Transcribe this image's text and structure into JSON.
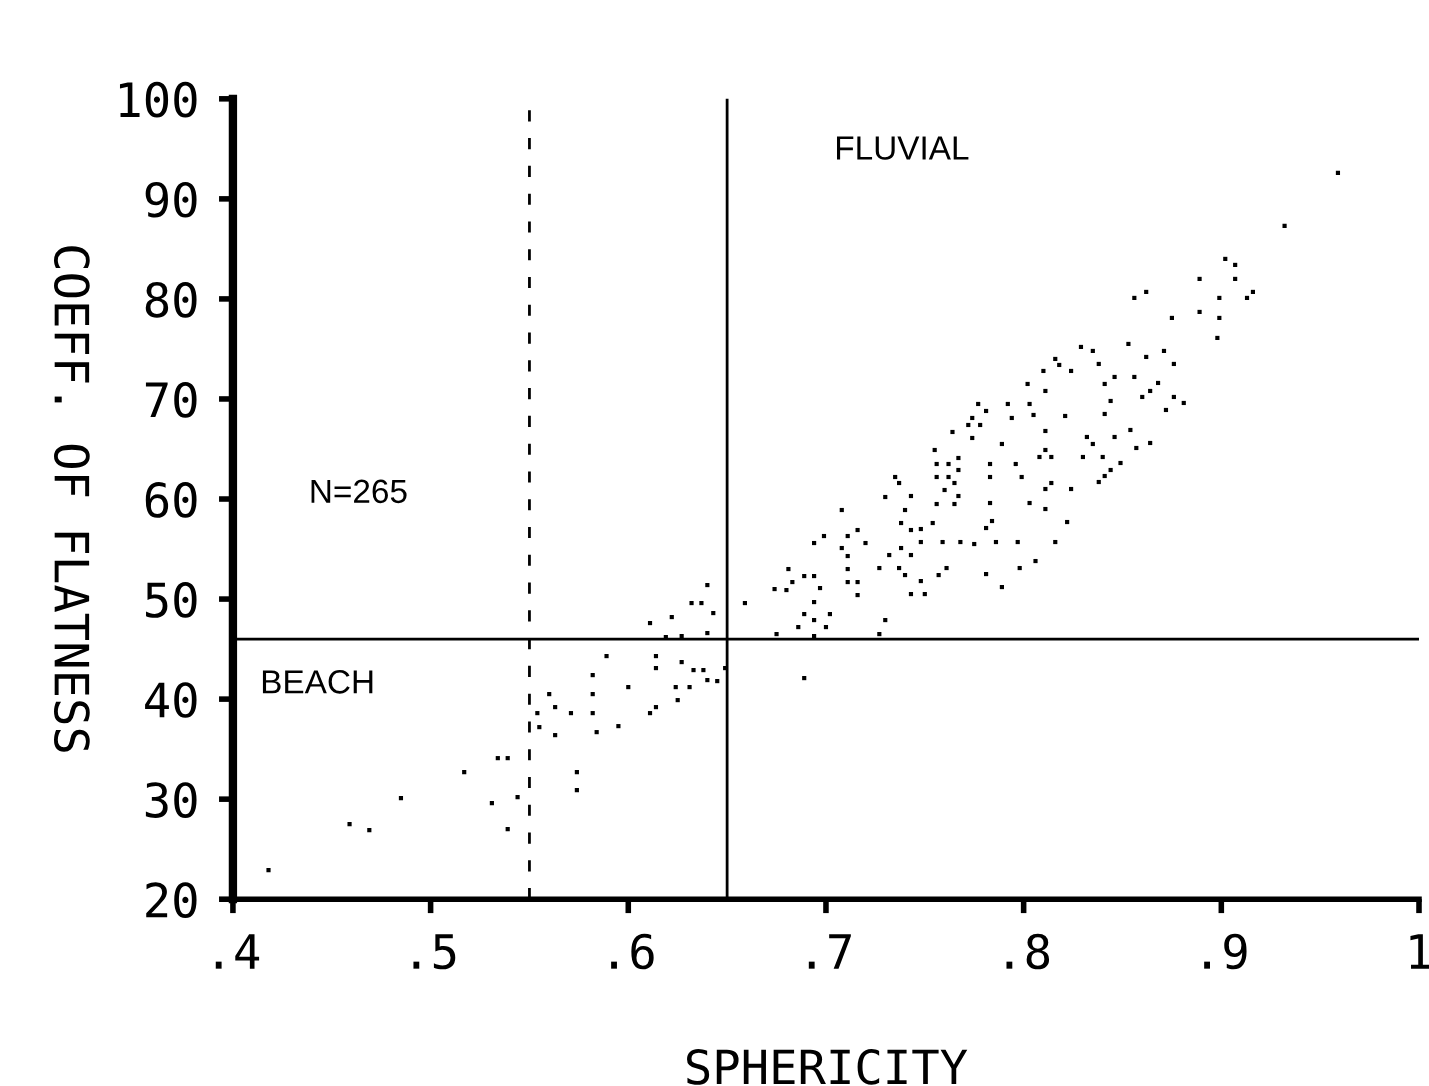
{
  "chart_data": {
    "type": "scatter",
    "xlabel": "SPHERICITY",
    "ylabel": "COEFF. OF FLATNESS",
    "xlim": [
      0.4,
      1.0
    ],
    "ylim": [
      20,
      100
    ],
    "xticks": [
      {
        "value": 0.4,
        "label": ".4"
      },
      {
        "value": 0.5,
        "label": ".5"
      },
      {
        "value": 0.6,
        "label": ".6"
      },
      {
        "value": 0.7,
        "label": ".7"
      },
      {
        "value": 0.8,
        "label": ".8"
      },
      {
        "value": 0.9,
        "label": ".9"
      },
      1
    ],
    "yticks": [
      20,
      30,
      40,
      50,
      60,
      70,
      80,
      90,
      100
    ],
    "grid": false,
    "marker": "square",
    "legend": false,
    "ref_lines": [
      {
        "axis": "x",
        "value": 0.55,
        "label": null,
        "color": "#000000",
        "line_style": "dashed"
      },
      {
        "axis": "x",
        "value": 0.65,
        "label": null,
        "color": "#000000",
        "line_style": "solid"
      },
      {
        "axis": "y",
        "value": 46,
        "label": null,
        "color": "#000000",
        "line_style": "solid"
      }
    ],
    "annotations": [
      "FLUVIAL",
      "BEACH",
      "N=265"
    ],
    "series": [
      {
        "color": "#000000",
        "x": [
          0.418,
          0.459,
          0.469,
          0.485,
          0.517,
          0.531,
          0.534,
          0.539,
          0.539,
          0.544,
          0.554,
          0.555,
          0.56,
          0.563,
          0.563,
          0.571,
          0.574,
          0.574,
          0.582,
          0.582,
          0.582,
          0.584,
          0.589,
          0.595,
          0.6,
          0.611,
          0.611,
          0.614,
          0.614,
          0.614,
          0.619,
          0.622,
          0.624,
          0.625,
          0.627,
          0.627,
          0.631,
          0.632,
          0.633,
          0.637,
          0.638,
          0.64,
          0.64,
          0.64,
          0.643,
          0.645,
          0.649,
          0.659,
          0.675,
          0.674,
          0.68,
          0.681,
          0.683,
          0.686,
          0.689,
          0.689,
          0.689,
          0.694,
          0.694,
          0.694,
          0.694,
          0.694,
          0.697,
          0.699,
          0.7,
          0.702,
          0.708,
          0.708,
          0.711,
          0.711,
          0.711,
          0.711,
          0.716,
          0.716,
          0.716,
          0.72,
          0.727,
          0.727,
          0.73,
          0.73,
          0.732,
          0.735,
          0.737,
          0.737,
          0.738,
          0.738,
          0.74,
          0.74,
          0.743,
          0.743,
          0.743,
          0.743,
          0.748,
          0.748,
          0.748,
          0.75,
          0.754,
          0.755,
          0.756,
          0.756,
          0.756,
          0.757,
          0.759,
          0.76,
          0.761,
          0.762,
          0.762,
          0.764,
          0.765,
          0.765,
          0.767,
          0.767,
          0.767,
          0.768,
          0.772,
          0.774,
          0.774,
          0.775,
          0.777,
          0.778,
          0.781,
          0.781,
          0.781,
          0.783,
          0.783,
          0.783,
          0.784,
          0.786,
          0.789,
          0.789,
          0.792,
          0.794,
          0.796,
          0.797,
          0.798,
          0.799,
          0.802,
          0.803,
          0.803,
          0.805,
          0.806,
          0.808,
          0.81,
          0.811,
          0.811,
          0.811,
          0.811,
          0.811,
          0.814,
          0.814,
          0.816,
          0.816,
          0.818,
          0.821,
          0.822,
          0.824,
          0.824,
          0.829,
          0.83,
          0.832,
          0.835,
          0.835,
          0.838,
          0.838,
          0.84,
          0.841,
          0.841,
          0.841,
          0.844,
          0.844,
          0.846,
          0.846,
          0.849,
          0.853,
          0.854,
          0.856,
          0.857,
          0.856,
          0.86,
          0.862,
          0.862,
          0.864,
          0.864,
          0.868,
          0.871,
          0.872,
          0.875,
          0.876,
          0.876,
          0.881,
          0.889,
          0.889,
          0.898,
          0.899,
          0.899,
          0.902,
          0.907,
          0.907,
          0.913,
          0.916,
          0.932,
          0.959
        ],
        "values": [
          22.9,
          27.5,
          26.9,
          30.1,
          32.7,
          29.6,
          34.1,
          34.1,
          27.0,
          30.2,
          38.6,
          37.2,
          40.5,
          39.2,
          36.4,
          38.6,
          32.7,
          30.9,
          42.4,
          40.5,
          38.6,
          36.7,
          44.3,
          37.3,
          41.2,
          47.6,
          38.6,
          44.3,
          43.1,
          39.2,
          46.2,
          48.2,
          41.2,
          39.9,
          46.3,
          43.7,
          41.2,
          49.6,
          42.9,
          49.6,
          42.9,
          51.4,
          46.6,
          41.9,
          48.6,
          41.8,
          43.1,
          49.6,
          46.5,
          51.0,
          50.9,
          53.0,
          51.7,
          47.2,
          52.3,
          48.5,
          42.1,
          55.6,
          52.3,
          49.7,
          47.9,
          46.3,
          51.1,
          56.3,
          47.2,
          48.5,
          58.9,
          55.1,
          56.3,
          54.3,
          53.0,
          51.7,
          56.9,
          51.7,
          50.4,
          55.6,
          53.1,
          46.5,
          60.2,
          47.9,
          54.4,
          62.2,
          53.1,
          61.6,
          55.1,
          57.6,
          52.4,
          58.9,
          60.3,
          56.9,
          54.4,
          50.5,
          57.0,
          55.7,
          51.8,
          50.5,
          57.6,
          64.9,
          63.5,
          62.2,
          59.5,
          52.4,
          55.7,
          60.9,
          53.1,
          63.5,
          62.2,
          66.7,
          61.6,
          59.5,
          64.1,
          62.9,
          60.3,
          55.7,
          67.4,
          68.1,
          66.1,
          55.5,
          69.5,
          67.4,
          68.8,
          57.1,
          52.5,
          63.5,
          62.2,
          59.6,
          57.8,
          55.7,
          65.5,
          51.2,
          69.5,
          68.1,
          63.5,
          55.7,
          53.1,
          62.2,
          71.5,
          69.5,
          59.6,
          68.4,
          53.8,
          64.2,
          72.8,
          70.8,
          66.8,
          64.9,
          61.0,
          59.0,
          64.2,
          61.6,
          74.0,
          55.7,
          73.4,
          68.3,
          57.7,
          72.8,
          61.0,
          75.2,
          64.2,
          66.2,
          74.8,
          65.5,
          73.5,
          61.7,
          64.2,
          71.5,
          68.5,
          62.3,
          62.9,
          69.8,
          72.2,
          66.2,
          63.6,
          75.5,
          66.9,
          72.2,
          65.1,
          80.1,
          70.2,
          74.2,
          80.7,
          70.8,
          65.6,
          71.6,
          74.8,
          68.9,
          78.1,
          73.5,
          70.2,
          69.6,
          82.0,
          78.7,
          76.1,
          80.1,
          78.1,
          84.0,
          83.4,
          82.0,
          80.1,
          80.7,
          87.3,
          92.6
        ]
      }
    ]
  }
}
